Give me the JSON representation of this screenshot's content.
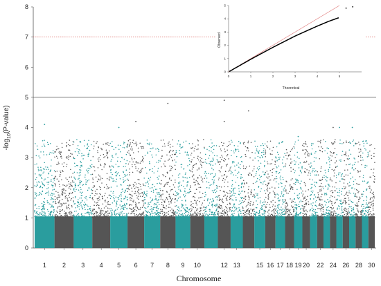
{
  "chart_data": [
    {
      "type": "scatter",
      "subtype": "manhattan",
      "title": "",
      "xlabel": "Chromosome",
      "ylabel_parts": {
        "prefix": "-log",
        "subscript": "10",
        "suffix": "(P-value)"
      },
      "ylim": [
        0,
        8
      ],
      "yticks": [
        "0",
        "1",
        "2",
        "3",
        "4",
        "5",
        "6",
        "7",
        "8"
      ],
      "x_tick_labels": [
        "1",
        "2",
        "3",
        "4",
        "5",
        "6",
        "7",
        "8",
        "9",
        "10",
        "12",
        "13",
        "15",
        "16",
        "17",
        "18",
        "19",
        "20",
        "22",
        "24",
        "26",
        "28",
        "30"
      ],
      "chromosome_count": 30,
      "colors": [
        "#2a9d9e",
        "#555555"
      ],
      "threshold_lines": [
        {
          "y": 7,
          "color": "#d9534f",
          "style": "dotted"
        },
        {
          "y": 5,
          "color": "#555555",
          "style": "solid"
        }
      ],
      "top_hits": [
        {
          "chromosome": 1,
          "value": 4.1
        },
        {
          "chromosome": 5,
          "value": 4.0
        },
        {
          "chromosome": 6,
          "value": 4.2
        },
        {
          "chromosome": 8,
          "value": 4.8
        },
        {
          "chromosome": 12,
          "value": 4.9
        },
        {
          "chromosome": 12,
          "value": 4.2
        },
        {
          "chromosome": 14,
          "value": 4.55
        },
        {
          "chromosome": 19,
          "value": 3.7
        },
        {
          "chromosome": 24,
          "value": 4.0
        },
        {
          "chromosome": 25,
          "value": 4.0
        },
        {
          "chromosome": 27,
          "value": 4.0
        }
      ]
    },
    {
      "type": "scatter",
      "subtype": "qq",
      "xlabel": "Theoretical",
      "ylabel": "Observed",
      "xlim": [
        0,
        6
      ],
      "ylim": [
        0,
        5
      ],
      "xticks": [
        "0",
        "1",
        "2",
        "3",
        "4",
        "5"
      ],
      "yticks": [
        "0",
        "1",
        "2",
        "3",
        "4",
        "5"
      ],
      "diagonal_color": "#e07b7b",
      "point_color": "#000000",
      "curve": [
        {
          "x": 0,
          "y": 0
        },
        {
          "x": 1,
          "y": 0.95
        },
        {
          "x": 2,
          "y": 1.85
        },
        {
          "x": 3,
          "y": 2.7
        },
        {
          "x": 4,
          "y": 3.45
        },
        {
          "x": 4.5,
          "y": 3.8
        },
        {
          "x": 5,
          "y": 4.1
        },
        {
          "x": 5.3,
          "y": 4.8
        },
        {
          "x": 5.6,
          "y": 4.9
        }
      ]
    }
  ]
}
